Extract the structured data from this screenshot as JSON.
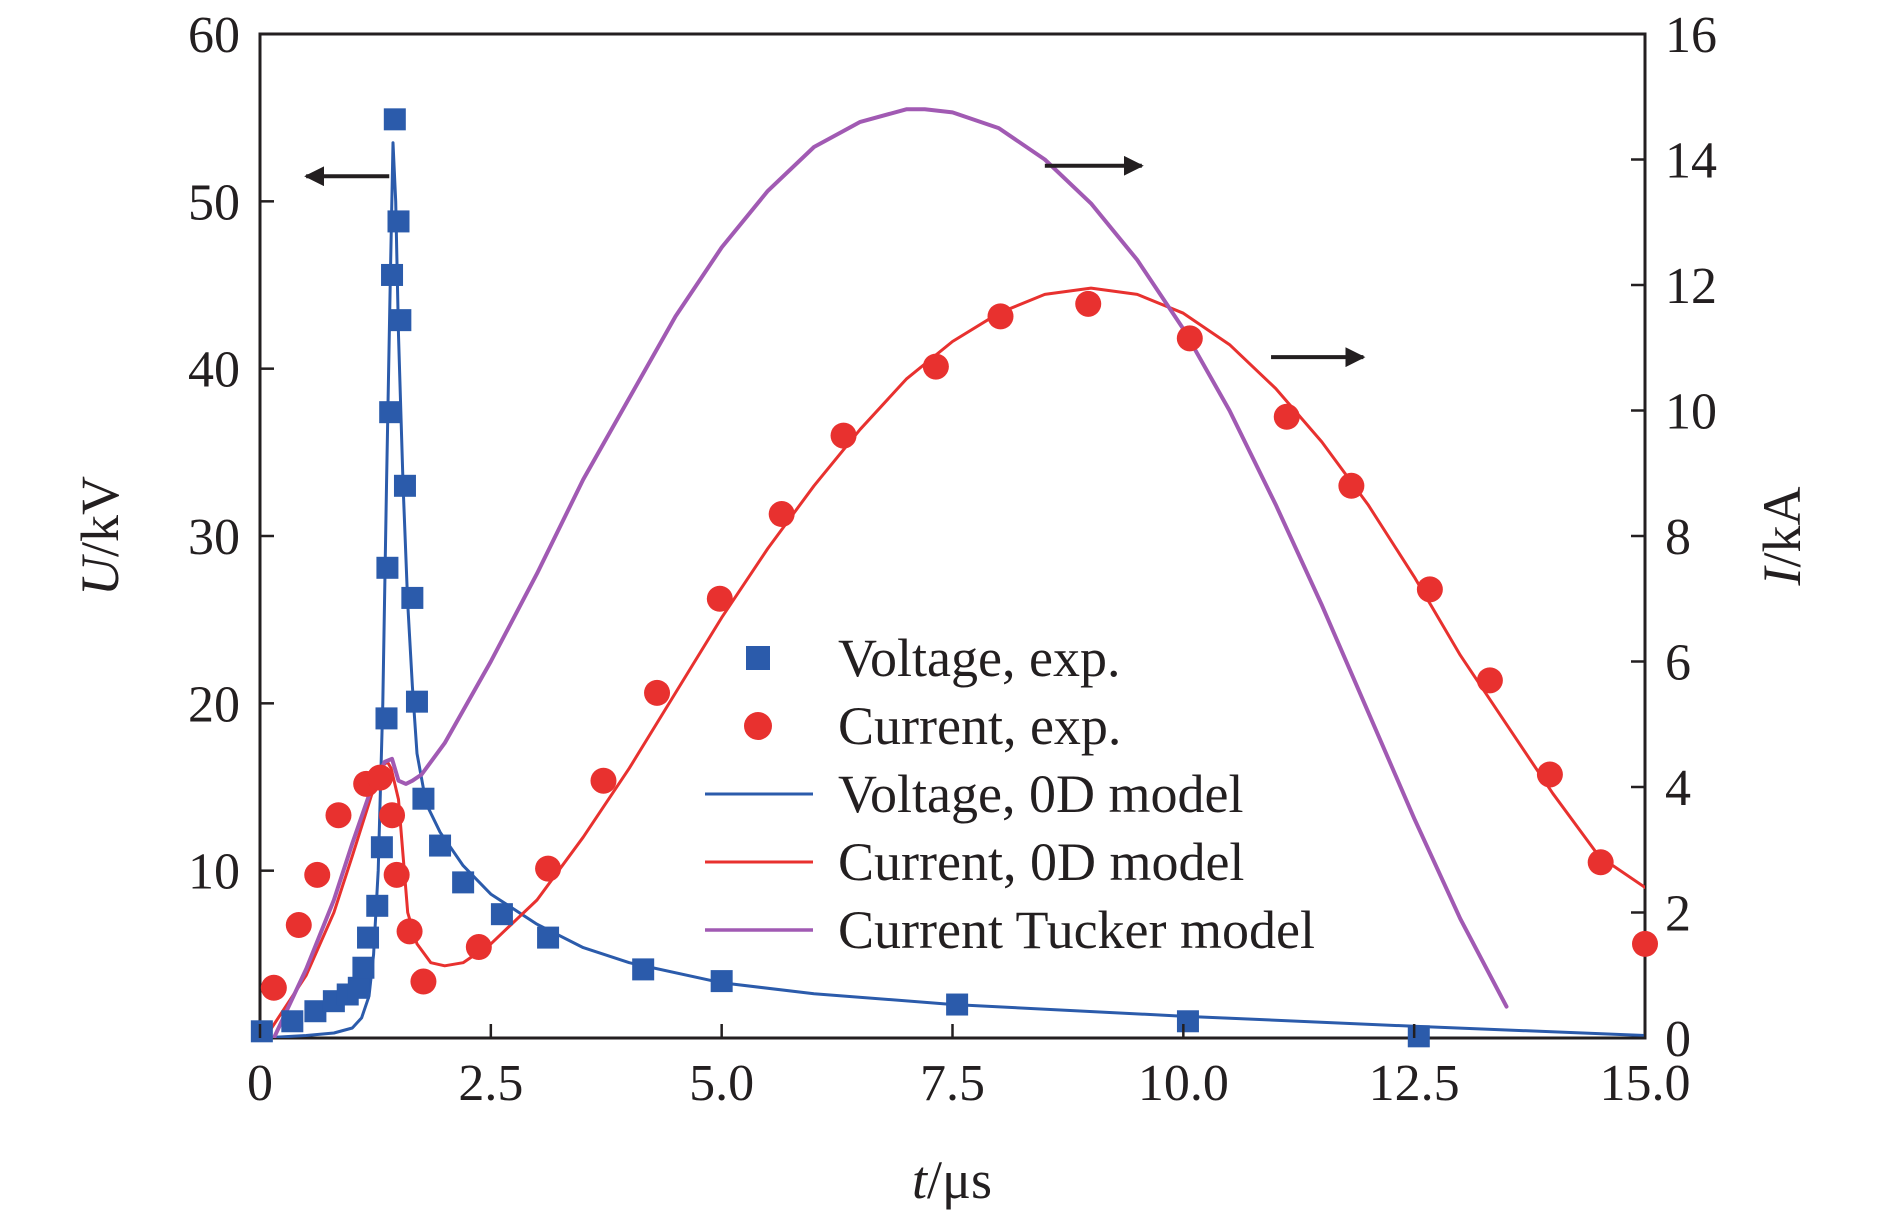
{
  "chart_data": {
    "type": "line",
    "xlabel": {
      "var": "t",
      "unit": "/μs"
    },
    "ylabel_left": {
      "var": "U",
      "unit": "/kV"
    },
    "ylabel_right": {
      "var": "I",
      "unit": "/kA"
    },
    "xlim": [
      0,
      15
    ],
    "ylim_left": [
      0,
      60
    ],
    "ylim_right": [
      0,
      16
    ],
    "x_ticks": [
      {
        "value": 0,
        "label": "0"
      },
      {
        "value": 2.5,
        "label": "2.5"
      },
      {
        "value": 5,
        "label": "5.0"
      },
      {
        "value": 7.5,
        "label": "7.5"
      },
      {
        "value": 10,
        "label": "10.0"
      },
      {
        "value": 12.5,
        "label": "12.5"
      },
      {
        "value": 15,
        "label": "15.0"
      }
    ],
    "y_left_ticks": [
      {
        "value": 10,
        "label": "10"
      },
      {
        "value": 20,
        "label": "20"
      },
      {
        "value": 30,
        "label": "30"
      },
      {
        "value": 40,
        "label": "40"
      },
      {
        "value": 50,
        "label": "50"
      },
      {
        "value": 60,
        "label": "60"
      }
    ],
    "y_right_ticks": [
      {
        "value": 0,
        "label": "0"
      },
      {
        "value": 2,
        "label": "2"
      },
      {
        "value": 4,
        "label": "4"
      },
      {
        "value": 6,
        "label": "6"
      },
      {
        "value": 8,
        "label": "8"
      },
      {
        "value": 10,
        "label": "10"
      },
      {
        "value": 12,
        "label": "12"
      },
      {
        "value": 14,
        "label": "14"
      },
      {
        "value": 16,
        "label": "16"
      }
    ],
    "series": [
      {
        "name": "Voltage, exp.",
        "kind": "scatter",
        "marker": "square",
        "axis": "left",
        "color": "#2b5bab",
        "points": [
          [
            0.02,
            0.4
          ],
          [
            0.35,
            1.0
          ],
          [
            0.6,
            1.6
          ],
          [
            0.8,
            2.2
          ],
          [
            0.95,
            2.6
          ],
          [
            1.07,
            3.0
          ],
          [
            1.12,
            4.2
          ],
          [
            1.17,
            6.0
          ],
          [
            1.27,
            7.9
          ],
          [
            1.32,
            11.4
          ],
          [
            1.37,
            19.1
          ],
          [
            1.38,
            28.1
          ],
          [
            1.41,
            37.4
          ],
          [
            1.43,
            45.6
          ],
          [
            1.46,
            54.9
          ],
          [
            1.5,
            48.8
          ],
          [
            1.52,
            42.9
          ],
          [
            1.57,
            33.0
          ],
          [
            1.65,
            26.3
          ],
          [
            1.7,
            20.1
          ],
          [
            1.77,
            14.3
          ],
          [
            1.95,
            11.5
          ],
          [
            2.2,
            9.3
          ],
          [
            2.62,
            7.4
          ],
          [
            3.12,
            6.0
          ],
          [
            4.15,
            4.1
          ],
          [
            5.0,
            3.4
          ],
          [
            7.55,
            2.0
          ],
          [
            10.05,
            1.0
          ],
          [
            12.55,
            0.1
          ]
        ]
      },
      {
        "name": "Current, exp.",
        "kind": "scatter",
        "marker": "circle",
        "axis": "right",
        "color": "#e8312f",
        "points": [
          [
            0.15,
            0.8
          ],
          [
            0.42,
            1.8
          ],
          [
            0.62,
            2.6
          ],
          [
            0.85,
            3.55
          ],
          [
            1.15,
            4.05
          ],
          [
            1.3,
            4.15
          ],
          [
            1.43,
            3.55
          ],
          [
            1.48,
            2.6
          ],
          [
            1.62,
            1.7
          ],
          [
            1.77,
            0.9
          ],
          [
            2.37,
            1.45
          ],
          [
            3.12,
            2.7
          ],
          [
            3.72,
            4.1
          ],
          [
            4.3,
            5.5
          ],
          [
            4.98,
            7.0
          ],
          [
            5.65,
            8.35
          ],
          [
            6.32,
            9.6
          ],
          [
            7.32,
            10.7
          ],
          [
            8.02,
            11.5
          ],
          [
            8.97,
            11.7
          ],
          [
            10.07,
            11.15
          ],
          [
            11.12,
            9.9
          ],
          [
            11.82,
            8.8
          ],
          [
            12.67,
            7.15
          ],
          [
            13.32,
            5.7
          ],
          [
            13.97,
            4.2
          ],
          [
            14.52,
            2.8
          ],
          [
            15.0,
            1.5
          ]
        ]
      },
      {
        "name": "Voltage, 0D model",
        "kind": "line",
        "axis": "left",
        "color": "#2b5bab",
        "points": [
          [
            0.02,
            0
          ],
          [
            0.5,
            0.15
          ],
          [
            0.8,
            0.3
          ],
          [
            1.0,
            0.6
          ],
          [
            1.1,
            1.2
          ],
          [
            1.18,
            2.5
          ],
          [
            1.23,
            5
          ],
          [
            1.28,
            10
          ],
          [
            1.33,
            20
          ],
          [
            1.37,
            33
          ],
          [
            1.41,
            45
          ],
          [
            1.44,
            53.5
          ],
          [
            1.47,
            50
          ],
          [
            1.5,
            42
          ],
          [
            1.55,
            33
          ],
          [
            1.6,
            26
          ],
          [
            1.65,
            21
          ],
          [
            1.7,
            17
          ],
          [
            1.8,
            14
          ],
          [
            1.95,
            12.3
          ],
          [
            2.2,
            10.3
          ],
          [
            2.5,
            8.6
          ],
          [
            3.0,
            6.8
          ],
          [
            3.5,
            5.4
          ],
          [
            4.0,
            4.5
          ],
          [
            5.0,
            3.3
          ],
          [
            6.0,
            2.65
          ],
          [
            7.5,
            2.0
          ],
          [
            10.0,
            1.3
          ],
          [
            12.5,
            0.7
          ],
          [
            15.0,
            0.15
          ]
        ]
      },
      {
        "name": "Current, 0D model",
        "kind": "line",
        "axis": "right",
        "color": "#e8312f",
        "points": [
          [
            0.1,
            0.1
          ],
          [
            0.5,
            1.0
          ],
          [
            0.8,
            2.0
          ],
          [
            1.0,
            2.9
          ],
          [
            1.15,
            3.6
          ],
          [
            1.3,
            4.3
          ],
          [
            1.38,
            4.4
          ],
          [
            1.42,
            4.3
          ],
          [
            1.5,
            3.8
          ],
          [
            1.55,
            2.9
          ],
          [
            1.6,
            2.0
          ],
          [
            1.7,
            1.5
          ],
          [
            1.85,
            1.2
          ],
          [
            2.0,
            1.15
          ],
          [
            2.2,
            1.2
          ],
          [
            2.5,
            1.5
          ],
          [
            3.0,
            2.2
          ],
          [
            3.5,
            3.2
          ],
          [
            4.0,
            4.3
          ],
          [
            4.5,
            5.5
          ],
          [
            5.0,
            6.7
          ],
          [
            5.5,
            7.8
          ],
          [
            6.0,
            8.8
          ],
          [
            6.5,
            9.7
          ],
          [
            7.0,
            10.5
          ],
          [
            7.5,
            11.1
          ],
          [
            8.0,
            11.55
          ],
          [
            8.5,
            11.85
          ],
          [
            9.0,
            11.95
          ],
          [
            9.5,
            11.85
          ],
          [
            10.0,
            11.55
          ],
          [
            10.5,
            11.05
          ],
          [
            11.0,
            10.35
          ],
          [
            11.5,
            9.5
          ],
          [
            12.0,
            8.5
          ],
          [
            12.5,
            7.35
          ],
          [
            13.0,
            6.1
          ],
          [
            13.5,
            5.0
          ],
          [
            14.0,
            3.9
          ],
          [
            14.5,
            2.9
          ],
          [
            15.0,
            2.4
          ]
        ]
      },
      {
        "name": "Current Tucker model",
        "kind": "line",
        "axis": "right",
        "color": "#a15ab3",
        "points": [
          [
            0.15,
            0
          ],
          [
            0.5,
            1.1
          ],
          [
            0.8,
            2.2
          ],
          [
            1.0,
            3.1
          ],
          [
            1.2,
            3.95
          ],
          [
            1.35,
            4.4
          ],
          [
            1.43,
            4.45
          ],
          [
            1.5,
            4.1
          ],
          [
            1.58,
            4.05
          ],
          [
            1.65,
            4.1
          ],
          [
            1.75,
            4.2
          ],
          [
            2.0,
            4.7
          ],
          [
            2.5,
            6.0
          ],
          [
            3.0,
            7.4
          ],
          [
            3.5,
            8.9
          ],
          [
            4.0,
            10.2
          ],
          [
            4.5,
            11.5
          ],
          [
            5.0,
            12.6
          ],
          [
            5.5,
            13.5
          ],
          [
            6.0,
            14.2
          ],
          [
            6.5,
            14.6
          ],
          [
            7.0,
            14.8
          ],
          [
            7.2,
            14.8
          ],
          [
            7.5,
            14.75
          ],
          [
            8.0,
            14.5
          ],
          [
            8.5,
            14.0
          ],
          [
            9.0,
            13.3
          ],
          [
            9.5,
            12.4
          ],
          [
            10.0,
            11.3
          ],
          [
            10.5,
            10.0
          ],
          [
            11.0,
            8.5
          ],
          [
            11.5,
            6.9
          ],
          [
            12.0,
            5.2
          ],
          [
            12.5,
            3.5
          ],
          [
            13.0,
            1.9
          ],
          [
            13.5,
            0.5
          ]
        ]
      }
    ],
    "legend": {
      "position": "center-right",
      "entries": [
        {
          "label": "Voltage, exp.",
          "symbol": "square",
          "color": "#2b5bab"
        },
        {
          "label": "Current, exp.",
          "symbol": "circle",
          "color": "#e8312f"
        },
        {
          "label": "Voltage, 0D model",
          "symbol": "line",
          "color": "#2b5bab"
        },
        {
          "label": "Current, 0D model",
          "symbol": "line",
          "color": "#e8312f"
        },
        {
          "label": "Current Tucker model",
          "symbol": "line",
          "color": "#a15ab3"
        }
      ]
    },
    "annotations": [
      {
        "type": "arrow",
        "direction": "left",
        "axis": "left",
        "x": 1.4,
        "y": 51.5,
        "x_end": 0.5
      },
      {
        "type": "arrow",
        "direction": "right",
        "axis": "right",
        "x": 8.5,
        "y": 13.9,
        "x_end": 9.55
      },
      {
        "type": "arrow",
        "direction": "right",
        "axis": "right",
        "x": 10.95,
        "y": 10.85,
        "x_end": 11.95
      }
    ]
  }
}
